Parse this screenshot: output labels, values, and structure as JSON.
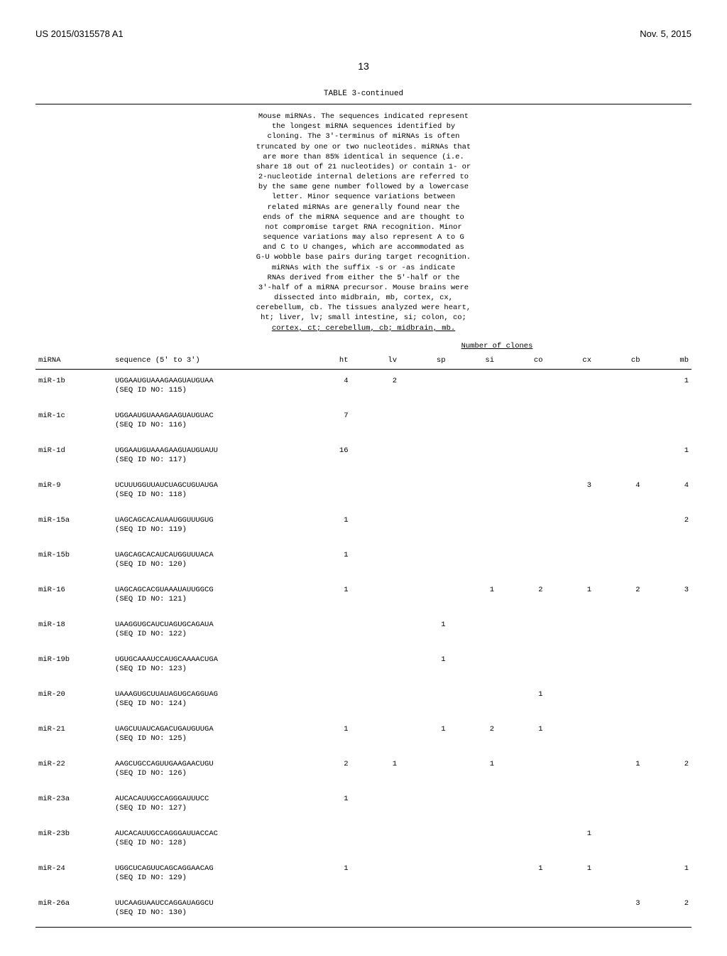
{
  "header": {
    "patent_no": "US 2015/0315578 A1",
    "pub_date": "Nov. 5, 2015"
  },
  "page_number": "13",
  "table": {
    "label": "TABLE 3-continued",
    "caption": "Mouse miRNAs. The sequences indicated represent\nthe longest miRNA sequences identified by\ncloning. The 3'-terminus of miRNAs is often\ntruncated by one or two nucleotides. miRNAs that\nare more than 85% identical in sequence (i.e.\nshare 18 out of 21 nucleotides) or contain 1- or\n2-nucleotide internal deletions are referred to\nby the same gene number followed by a lowercase\nletter. Minor sequence variations between\nrelated miRNAs are generally found near the\nends of the miRNA sequence and are thought to\nnot compromise target RNA recognition. Minor\nsequence variations may also represent A to G\nand C to U changes, which are accommodated as\nG-U wobble base pairs during target recognition.\nmiRNAs with the suffix -s or -as indicate\nRNAs derived from either the 5'-half or the\n3'-half of a miRNA precursor. Mouse brains were\ndissected into midbrain, mb, cortex, cx,\ncerebellum, cb. The tissues analyzed were heart,\nht; liver, lv; small intestine, si; colon, co;",
    "caption_last": "cortex, ct; cerebellum, cb; midbrain, mb.",
    "clones_header": "Number of clones",
    "columns": {
      "mirna": "miRNA",
      "sequence": "sequence (5' to 3')",
      "ht": "ht",
      "lv": "lv",
      "sp": "sp",
      "si": "si",
      "co": "co",
      "cx": "cx",
      "cb": "cb",
      "mb": "mb"
    },
    "rows": [
      {
        "mirna": "miR-1b",
        "seq": "UGGAAUGUAAAGAAGUAUGUAA",
        "seqid": "(SEQ ID NO: 115)",
        "ht": "4",
        "lv": "2",
        "sp": "",
        "si": "",
        "co": "",
        "cx": "",
        "cb": "",
        "mb": "1"
      },
      {
        "mirna": "miR-1c",
        "seq": "UGGAAUGUAAAGAAGUAUGUAC",
        "seqid": "(SEQ ID NO: 116)",
        "ht": "7",
        "lv": "",
        "sp": "",
        "si": "",
        "co": "",
        "cx": "",
        "cb": "",
        "mb": ""
      },
      {
        "mirna": "miR-1d",
        "seq": "UGGAAUGUAAAGAAGUAUGUAUU",
        "seqid": "(SEQ ID NO: 117)",
        "ht": "16",
        "lv": "",
        "sp": "",
        "si": "",
        "co": "",
        "cx": "",
        "cb": "",
        "mb": "1"
      },
      {
        "mirna": "miR-9",
        "seq": "UCUUUGGUUAUCUAGCUGUAUGA",
        "seqid": "(SEQ ID NO: 118)",
        "ht": "",
        "lv": "",
        "sp": "",
        "si": "",
        "co": "",
        "cx": "3",
        "cb": "4",
        "mb": "4"
      },
      {
        "mirna": "miR-15a",
        "seq": "UAGCAGCACAUAAUGGUUUGUG",
        "seqid": "(SEQ ID NO: 119)",
        "ht": "1",
        "lv": "",
        "sp": "",
        "si": "",
        "co": "",
        "cx": "",
        "cb": "",
        "mb": "2"
      },
      {
        "mirna": "miR-15b",
        "seq": "UAGCAGCACAUCAUGGUUUACA",
        "seqid": "(SEQ ID NO: 120)",
        "ht": "1",
        "lv": "",
        "sp": "",
        "si": "",
        "co": "",
        "cx": "",
        "cb": "",
        "mb": ""
      },
      {
        "mirna": "miR-16",
        "seq": "UAGCAGCACGUAAAUAUUGGCG",
        "seqid": "(SEQ ID NO: 121)",
        "ht": "1",
        "lv": "",
        "sp": "",
        "si": "1",
        "co": "2",
        "cx": "1",
        "cb": "2",
        "mb": "3"
      },
      {
        "mirna": "miR-18",
        "seq": "UAAGGUGCAUCUAGUGCAGAUA",
        "seqid": "(SEQ ID NO: 122)",
        "ht": "",
        "lv": "",
        "sp": "1",
        "si": "",
        "co": "",
        "cx": "",
        "cb": "",
        "mb": ""
      },
      {
        "mirna": "miR-19b",
        "seq": "UGUGCAAAUCCAUGCAAAACUGA",
        "seqid": "(SEQ ID NO: 123)",
        "ht": "",
        "lv": "",
        "sp": "1",
        "si": "",
        "co": "",
        "cx": "",
        "cb": "",
        "mb": ""
      },
      {
        "mirna": "miR-20",
        "seq": "UAAAGUGCUUAUAGUGCAGGUAG",
        "seqid": "(SEQ ID NO: 124)",
        "ht": "",
        "lv": "",
        "sp": "",
        "si": "",
        "co": "1",
        "cx": "",
        "cb": "",
        "mb": ""
      },
      {
        "mirna": "miR-21",
        "seq": "UAGCUUAUCAGACUGAUGUUGA",
        "seqid": "(SEQ ID NO: 125)",
        "ht": "1",
        "lv": "",
        "sp": "1",
        "si": "2",
        "co": "1",
        "cx": "",
        "cb": "",
        "mb": ""
      },
      {
        "mirna": "miR-22",
        "seq": "AAGCUGCCAGUUGAAGAACUGU",
        "seqid": "(SEQ ID NO: 126)",
        "ht": "2",
        "lv": "1",
        "sp": "",
        "si": "1",
        "co": "",
        "cx": "",
        "cb": "1",
        "mb": "2"
      },
      {
        "mirna": "miR-23a",
        "seq": "AUCACAUUGCCAGGGAUUUCC",
        "seqid": "(SEQ ID NO: 127)",
        "ht": "1",
        "lv": "",
        "sp": "",
        "si": "",
        "co": "",
        "cx": "",
        "cb": "",
        "mb": ""
      },
      {
        "mirna": "miR-23b",
        "seq": "AUCACAUUGCCAGGGAUUACCAC",
        "seqid": "(SEQ ID NO: 128)",
        "ht": "",
        "lv": "",
        "sp": "",
        "si": "",
        "co": "",
        "cx": "1",
        "cb": "",
        "mb": ""
      },
      {
        "mirna": "miR-24",
        "seq": "UGGCUCAGUUCAGCAGGAACAG",
        "seqid": "(SEQ ID NO: 129)",
        "ht": "1",
        "lv": "",
        "sp": "",
        "si": "",
        "co": "1",
        "cx": "1",
        "cb": "",
        "mb": "1"
      },
      {
        "mirna": "miR-26a",
        "seq": "UUCAAGUAAUCCAGGAUAGGCU",
        "seqid": "(SEQ ID NO: 130)",
        "ht": "",
        "lv": "",
        "sp": "",
        "si": "",
        "co": "",
        "cx": "",
        "cb": "3",
        "mb": "2"
      }
    ]
  }
}
